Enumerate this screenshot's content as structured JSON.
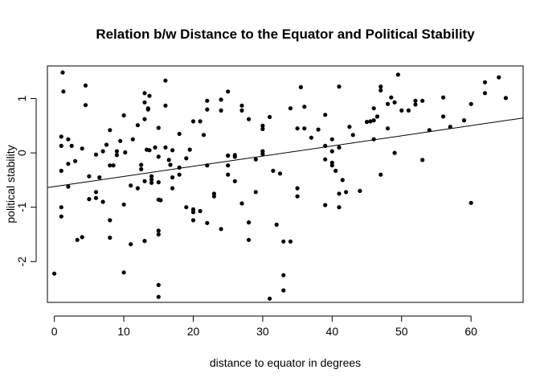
{
  "chart_data": {
    "type": "scatter",
    "title": "Relation b/w  Distance to the Equator and Political Stability",
    "xlabel": "distance to equator in degrees",
    "ylabel": "political stability",
    "xlim": [
      -1.0,
      67.5
    ],
    "ylim": [
      -2.75,
      1.6
    ],
    "xticks": [
      0,
      10,
      20,
      30,
      40,
      50,
      60
    ],
    "yticks": [
      -2,
      -1,
      0,
      1
    ],
    "grid": false,
    "legend": "none",
    "fit_line": {
      "intercept": -0.62,
      "slope": 0.0187
    },
    "points": [
      [
        0,
        -2.22
      ],
      [
        1,
        0.3
      ],
      [
        1,
        0.13
      ],
      [
        1,
        -0.33
      ],
      [
        1,
        -1.0
      ],
      [
        1,
        -1.17
      ],
      [
        1.2,
        1.48
      ],
      [
        1.3,
        1.13
      ],
      [
        2,
        0.25
      ],
      [
        2,
        -0.62
      ],
      [
        2,
        -0.2
      ],
      [
        2.5,
        0.13
      ],
      [
        3,
        -0.15
      ],
      [
        3.3,
        -1.6
      ],
      [
        4,
        -1.55
      ],
      [
        4,
        0.08
      ],
      [
        4.5,
        1.24
      ],
      [
        4.5,
        0.88
      ],
      [
        5,
        -0.43
      ],
      [
        5,
        -0.85
      ],
      [
        6,
        -0.72
      ],
      [
        6,
        -0.83
      ],
      [
        6,
        -0.03
      ],
      [
        6.5,
        -0.45
      ],
      [
        7,
        -0.9
      ],
      [
        7,
        0.03
      ],
      [
        7.5,
        0.15
      ],
      [
        8,
        0.42
      ],
      [
        8,
        -0.23
      ],
      [
        8,
        -1.24
      ],
      [
        8,
        -1.56
      ],
      [
        8.5,
        -0.23
      ],
      [
        9,
        0.03
      ],
      [
        9,
        -0.04
      ],
      [
        9.5,
        0.22
      ],
      [
        10,
        0.69
      ],
      [
        10,
        -0.95
      ],
      [
        10,
        -2.2
      ],
      [
        10.2,
        0.01
      ],
      [
        11,
        -1.68
      ],
      [
        11,
        -0.6
      ],
      [
        11.3,
        0.25
      ],
      [
        12,
        0.51
      ],
      [
        12,
        -0.65
      ],
      [
        12.5,
        -0.22
      ],
      [
        12.5,
        -0.3
      ],
      [
        13,
        1.1
      ],
      [
        13,
        0.93
      ],
      [
        13,
        0.62
      ],
      [
        13,
        -0.52
      ],
      [
        13,
        -1.62
      ],
      [
        13.3,
        0.06
      ],
      [
        13.5,
        0.8
      ],
      [
        13.5,
        0.82
      ],
      [
        13.7,
        0.05
      ],
      [
        13.7,
        1.05
      ],
      [
        14,
        -0.43
      ],
      [
        14,
        -0.49
      ],
      [
        14,
        -0.55
      ],
      [
        14.5,
        0.1
      ],
      [
        15,
        0.46
      ],
      [
        15,
        -0.07
      ],
      [
        15,
        -0.86
      ],
      [
        15,
        -0.54
      ],
      [
        15,
        -1.43
      ],
      [
        15,
        -1.5
      ],
      [
        15,
        -2.43
      ],
      [
        15,
        -2.65
      ],
      [
        15.3,
        -0.87
      ],
      [
        16,
        1.33
      ],
      [
        16,
        0.87
      ],
      [
        16,
        0.1
      ],
      [
        16.5,
        -0.13
      ],
      [
        16.7,
        -0.22
      ],
      [
        17,
        -0.45
      ],
      [
        17,
        -0.65
      ],
      [
        17,
        0.05
      ],
      [
        18,
        0.35
      ],
      [
        18,
        -0.27
      ],
      [
        18,
        -0.4
      ],
      [
        19,
        -0.1
      ],
      [
        19,
        -1.0
      ],
      [
        19.5,
        0.06
      ],
      [
        20,
        0.58
      ],
      [
        20,
        -1.04
      ],
      [
        20,
        -1.09
      ],
      [
        20,
        -1.24
      ],
      [
        21,
        0.58
      ],
      [
        21,
        -1.07
      ],
      [
        21.5,
        0.33
      ],
      [
        22,
        0.96
      ],
      [
        22,
        0.8
      ],
      [
        22,
        -0.23
      ],
      [
        22,
        -1.29
      ],
      [
        23,
        -0.75
      ],
      [
        23,
        -0.8
      ],
      [
        24,
        0.98
      ],
      [
        24,
        0.78
      ],
      [
        24,
        -1.4
      ],
      [
        25,
        1.13
      ],
      [
        25,
        -0.05
      ],
      [
        25,
        -0.05
      ],
      [
        25,
        -0.23
      ],
      [
        25,
        -0.4
      ],
      [
        26,
        -0.52
      ],
      [
        26,
        -0.04
      ],
      [
        26,
        -0.07
      ],
      [
        27,
        0.87
      ],
      [
        27,
        0.78
      ],
      [
        27,
        -0.93
      ],
      [
        28,
        0.62
      ],
      [
        28,
        -1.28
      ],
      [
        28,
        -1.6
      ],
      [
        29,
        -0.12
      ],
      [
        29,
        -0.72
      ],
      [
        30,
        0.5
      ],
      [
        30,
        0.44
      ],
      [
        30,
        0.03
      ],
      [
        30,
        -0.02
      ],
      [
        31,
        0.66
      ],
      [
        31,
        -2.68
      ],
      [
        31.5,
        -0.33
      ],
      [
        32,
        -1.32
      ],
      [
        32.5,
        -0.38
      ],
      [
        33,
        -1.63
      ],
      [
        33,
        -2.25
      ],
      [
        33,
        -2.53
      ],
      [
        34,
        0.82
      ],
      [
        34,
        -1.63
      ],
      [
        35,
        0.45
      ],
      [
        35,
        -0.65
      ],
      [
        35,
        -0.8
      ],
      [
        35.5,
        1.21
      ],
      [
        36,
        0.85
      ],
      [
        36,
        0.45
      ],
      [
        37,
        0.28
      ],
      [
        38,
        0.43
      ],
      [
        39,
        0.7
      ],
      [
        39,
        0.13
      ],
      [
        39,
        -0.12
      ],
      [
        39,
        -0.96
      ],
      [
        40,
        0.25
      ],
      [
        40,
        0.03
      ],
      [
        40,
        -0.18
      ],
      [
        40,
        -0.23
      ],
      [
        40.5,
        -0.33
      ],
      [
        41,
        1.22
      ],
      [
        41,
        0.1
      ],
      [
        41,
        -0.75
      ],
      [
        41,
        -1.0
      ],
      [
        41.5,
        -0.5
      ],
      [
        42,
        -0.72
      ],
      [
        42.5,
        0.48
      ],
      [
        43,
        0.33
      ],
      [
        44,
        -0.7
      ],
      [
        45,
        0.57
      ],
      [
        45.5,
        0.58
      ],
      [
        46,
        0.82
      ],
      [
        46,
        0.6
      ],
      [
        46,
        0.25
      ],
      [
        46.5,
        0.67
      ],
      [
        47,
        1.22
      ],
      [
        47,
        1.15
      ],
      [
        47,
        -0.4
      ],
      [
        48,
        0.9
      ],
      [
        48,
        0.45
      ],
      [
        48.5,
        1.02
      ],
      [
        49,
        0.0
      ],
      [
        49,
        0.93
      ],
      [
        49.5,
        1.44
      ],
      [
        50,
        0.78
      ],
      [
        51,
        0.78
      ],
      [
        52,
        0.96
      ],
      [
        52,
        0.89
      ],
      [
        53,
        0.96
      ],
      [
        53,
        -0.13
      ],
      [
        54,
        0.42
      ],
      [
        56,
        0.67
      ],
      [
        56,
        1.02
      ],
      [
        57,
        0.48
      ],
      [
        59,
        0.6
      ],
      [
        60,
        0.9
      ],
      [
        60,
        -0.92
      ],
      [
        62,
        1.3
      ],
      [
        62,
        1.1
      ],
      [
        64,
        1.39
      ],
      [
        65,
        1.01
      ]
    ]
  }
}
